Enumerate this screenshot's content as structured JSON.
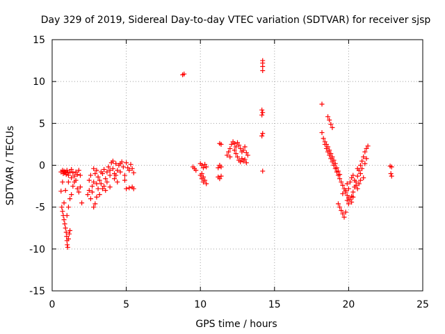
{
  "chart_data": {
    "type": "scatter",
    "title": "Day 329 of 2019, Sidereal Day-to-day VTEC variation (SDTVAR) for receiver sjsp",
    "xlabel": "GPS time / hours",
    "ylabel": "SDTVAR / TECUs",
    "xlim": [
      0,
      25
    ],
    "ylim": [
      -15,
      15
    ],
    "xticks": [
      0,
      5,
      10,
      15,
      20,
      25
    ],
    "yticks": [
      -15,
      -10,
      -5,
      0,
      5,
      10,
      15
    ],
    "xtick_labels": [
      "0",
      "5",
      "10",
      "15",
      "20",
      "25"
    ],
    "ytick_labels": [
      "-15",
      "-10",
      "-5",
      "0",
      "5",
      "10",
      "15"
    ],
    "grid": true,
    "marker": "+",
    "color": "#ff0000",
    "points": [
      [
        0.6,
        -0.8
      ],
      [
        0.7,
        -0.6
      ],
      [
        0.75,
        -1.0
      ],
      [
        0.8,
        -0.7
      ],
      [
        0.85,
        -0.9
      ],
      [
        0.9,
        -0.8
      ],
      [
        0.95,
        -1.1
      ],
      [
        1.0,
        -0.6
      ],
      [
        1.05,
        -0.9
      ],
      [
        1.1,
        -1.2
      ],
      [
        1.2,
        -0.8
      ],
      [
        1.3,
        -0.5
      ],
      [
        1.4,
        -0.9
      ],
      [
        1.5,
        -1.3
      ],
      [
        1.6,
        -0.8
      ],
      [
        1.7,
        -1.1
      ],
      [
        1.8,
        -0.6
      ],
      [
        1.9,
        -1.2
      ],
      [
        0.6,
        -3.1
      ],
      [
        0.65,
        -5.0
      ],
      [
        0.7,
        -5.5
      ],
      [
        0.75,
        -6.0
      ],
      [
        0.8,
        -6.5
      ],
      [
        0.85,
        -7.0
      ],
      [
        0.9,
        -7.5
      ],
      [
        0.95,
        -8.0
      ],
      [
        0.98,
        -8.5
      ],
      [
        1.0,
        -9.0
      ],
      [
        1.02,
        -9.5
      ],
      [
        1.05,
        -9.8
      ],
      [
        1.1,
        -8.8
      ],
      [
        1.15,
        -8.2
      ],
      [
        1.2,
        -7.8
      ],
      [
        1.0,
        -6.0
      ],
      [
        1.1,
        -5.0
      ],
      [
        1.2,
        -4.0
      ],
      [
        0.9,
        -3.0
      ],
      [
        0.8,
        -4.5
      ],
      [
        1.3,
        -3.5
      ],
      [
        1.4,
        -2.5
      ],
      [
        1.5,
        -2.0
      ],
      [
        1.6,
        -1.8
      ],
      [
        1.7,
        -2.8
      ],
      [
        1.8,
        -3.2
      ],
      [
        1.9,
        -2.6
      ],
      [
        2.0,
        -4.5
      ],
      [
        1.3,
        -1.5
      ],
      [
        1.1,
        -2.0
      ],
      [
        0.7,
        -2.0
      ],
      [
        2.4,
        -3.5
      ],
      [
        2.5,
        -3.0
      ],
      [
        2.6,
        -4.0
      ],
      [
        2.7,
        -3.2
      ],
      [
        2.8,
        -5.0
      ],
      [
        2.9,
        -4.6
      ],
      [
        3.0,
        -3.8
      ],
      [
        3.1,
        -2.8
      ],
      [
        3.2,
        -3.5
      ],
      [
        2.5,
        -1.8
      ],
      [
        2.6,
        -1.2
      ],
      [
        2.8,
        -2.0
      ],
      [
        2.9,
        -1.0
      ],
      [
        3.0,
        -0.6
      ],
      [
        3.1,
        -1.4
      ],
      [
        3.3,
        -2.2
      ],
      [
        3.4,
        -1.0
      ],
      [
        3.5,
        -0.5
      ],
      [
        3.6,
        -1.6
      ],
      [
        3.7,
        -0.8
      ],
      [
        3.8,
        -0.2
      ],
      [
        3.9,
        -1.2
      ],
      [
        4.0,
        0.3
      ],
      [
        4.1,
        -0.4
      ],
      [
        4.2,
        -1.0
      ],
      [
        3.5,
        -2.5
      ],
      [
        3.6,
        -3.0
      ],
      [
        3.4,
        -2.8
      ],
      [
        3.2,
        -1.8
      ],
      [
        3.0,
        -2.2
      ],
      [
        2.7,
        -2.5
      ],
      [
        4.3,
        0.2
      ],
      [
        4.4,
        -0.6
      ],
      [
        4.5,
        0.0
      ],
      [
        4.6,
        -0.8
      ],
      [
        4.7,
        0.4
      ],
      [
        4.8,
        -0.2
      ],
      [
        4.9,
        -1.2
      ],
      [
        5.0,
        0.3
      ],
      [
        5.1,
        -0.3
      ],
      [
        5.2,
        -0.6
      ],
      [
        5.3,
        0.1
      ],
      [
        5.4,
        -0.4
      ],
      [
        5.5,
        -0.9
      ],
      [
        5.0,
        -2.8
      ],
      [
        5.2,
        -2.7
      ],
      [
        5.4,
        -2.6
      ],
      [
        5.5,
        -2.8
      ],
      [
        4.9,
        -1.8
      ],
      [
        4.2,
        -1.6
      ],
      [
        4.4,
        -2.0
      ],
      [
        3.9,
        -0.6
      ],
      [
        4.1,
        0.5
      ],
      [
        4.3,
        -1.2
      ],
      [
        4.6,
        0.2
      ],
      [
        3.7,
        -2.0
      ],
      [
        3.3,
        -0.8
      ],
      [
        2.8,
        -0.4
      ],
      [
        3.9,
        -2.6
      ],
      [
        8.8,
        10.8
      ],
      [
        8.9,
        10.9
      ],
      [
        9.5,
        -0.2
      ],
      [
        9.6,
        -0.4
      ],
      [
        9.7,
        -0.6
      ],
      [
        10.0,
        0.2
      ],
      [
        10.1,
        0.0
      ],
      [
        10.2,
        -0.3
      ],
      [
        10.3,
        0.1
      ],
      [
        10.4,
        -0.2
      ],
      [
        10.0,
        -1.2
      ],
      [
        10.1,
        -1.6
      ],
      [
        10.2,
        -2.0
      ],
      [
        10.3,
        -1.8
      ],
      [
        10.4,
        -2.2
      ],
      [
        10.1,
        -1.0
      ],
      [
        10.2,
        -1.4
      ],
      [
        11.3,
        2.6
      ],
      [
        11.4,
        2.5
      ],
      [
        11.2,
        -0.3
      ],
      [
        11.3,
        0.0
      ],
      [
        11.4,
        -0.2
      ],
      [
        11.2,
        -1.4
      ],
      [
        11.3,
        -1.6
      ],
      [
        11.4,
        -1.3
      ],
      [
        11.8,
        1.2
      ],
      [
        11.9,
        1.6
      ],
      [
        12.0,
        2.0
      ],
      [
        12.1,
        2.5
      ],
      [
        12.2,
        2.8
      ],
      [
        12.3,
        2.6
      ],
      [
        12.4,
        2.2
      ],
      [
        12.5,
        2.7
      ],
      [
        12.6,
        2.4
      ],
      [
        12.7,
        2.0
      ],
      [
        12.8,
        1.6
      ],
      [
        12.9,
        1.8
      ],
      [
        13.0,
        2.2
      ],
      [
        13.1,
        1.5
      ],
      [
        13.2,
        1.2
      ],
      [
        12.5,
        1.0
      ],
      [
        12.6,
        0.6
      ],
      [
        12.7,
        0.4
      ],
      [
        12.8,
        0.8
      ],
      [
        12.9,
        0.5
      ],
      [
        13.0,
        0.7
      ],
      [
        13.1,
        0.3
      ],
      [
        12.4,
        1.4
      ],
      [
        12.3,
        1.8
      ],
      [
        12.0,
        1.0
      ],
      [
        14.2,
        12.5
      ],
      [
        14.2,
        12.2
      ],
      [
        14.2,
        11.8
      ],
      [
        14.2,
        11.3
      ],
      [
        14.15,
        6.6
      ],
      [
        14.2,
        6.3
      ],
      [
        14.15,
        6.0
      ],
      [
        14.2,
        3.8
      ],
      [
        14.15,
        3.5
      ],
      [
        14.2,
        -0.7
      ],
      [
        18.2,
        7.3
      ],
      [
        18.2,
        3.9
      ],
      [
        18.3,
        3.2
      ],
      [
        18.4,
        2.5
      ],
      [
        18.5,
        2.0
      ],
      [
        18.6,
        1.6
      ],
      [
        18.7,
        1.2
      ],
      [
        18.8,
        0.8
      ],
      [
        18.9,
        0.4
      ],
      [
        19.0,
        0.0
      ],
      [
        19.1,
        -0.4
      ],
      [
        19.2,
        -0.8
      ],
      [
        19.3,
        -1.2
      ],
      [
        19.4,
        -1.6
      ],
      [
        19.5,
        -2.0
      ],
      [
        19.6,
        -2.4
      ],
      [
        19.7,
        -2.8
      ],
      [
        19.8,
        -3.2
      ],
      [
        19.9,
        -3.6
      ],
      [
        20.0,
        -3.9
      ],
      [
        20.1,
        -4.1
      ],
      [
        20.2,
        -3.7
      ],
      [
        20.3,
        -3.2
      ],
      [
        20.4,
        -2.6
      ],
      [
        20.5,
        -2.0
      ],
      [
        20.6,
        -1.3
      ],
      [
        20.7,
        -0.6
      ],
      [
        20.8,
        0.0
      ],
      [
        20.9,
        0.5
      ],
      [
        21.0,
        1.0
      ],
      [
        21.1,
        1.6
      ],
      [
        21.2,
        2.0
      ],
      [
        21.3,
        2.3
      ],
      [
        18.6,
        5.8
      ],
      [
        18.7,
        5.4
      ],
      [
        18.8,
        4.9
      ],
      [
        18.9,
        4.5
      ],
      [
        18.4,
        2.8
      ],
      [
        18.5,
        2.5
      ],
      [
        18.6,
        2.2
      ],
      [
        18.7,
        1.8
      ],
      [
        18.8,
        1.4
      ],
      [
        18.9,
        1.0
      ],
      [
        19.0,
        0.6
      ],
      [
        19.1,
        0.2
      ],
      [
        19.2,
        -0.3
      ],
      [
        19.3,
        -0.7
      ],
      [
        19.4,
        -1.1
      ],
      [
        19.3,
        -4.6
      ],
      [
        19.4,
        -5.0
      ],
      [
        19.5,
        -5.4
      ],
      [
        19.6,
        -5.8
      ],
      [
        19.7,
        -6.2
      ],
      [
        19.8,
        -5.6
      ],
      [
        19.6,
        -3.4
      ],
      [
        19.8,
        -3.0
      ],
      [
        19.9,
        -2.2
      ],
      [
        20.0,
        -2.8
      ],
      [
        20.1,
        -2.0
      ],
      [
        20.2,
        -1.5
      ],
      [
        20.3,
        -1.2
      ],
      [
        20.4,
        -1.8
      ],
      [
        20.5,
        -2.4
      ],
      [
        20.6,
        -2.8
      ],
      [
        20.7,
        -2.2
      ],
      [
        20.8,
        -1.0
      ],
      [
        20.9,
        -0.4
      ],
      [
        21.0,
        -1.5
      ],
      [
        21.1,
        0.2
      ],
      [
        21.2,
        0.8
      ],
      [
        20.2,
        -4.4
      ],
      [
        20.0,
        -4.6
      ],
      [
        19.9,
        -4.2
      ],
      [
        20.3,
        -3.8
      ],
      [
        20.6,
        -0.4
      ],
      [
        20.8,
        -1.8
      ],
      [
        22.8,
        -0.1
      ],
      [
        22.9,
        -0.2
      ],
      [
        22.85,
        -1.0
      ],
      [
        22.9,
        -1.3
      ]
    ]
  }
}
